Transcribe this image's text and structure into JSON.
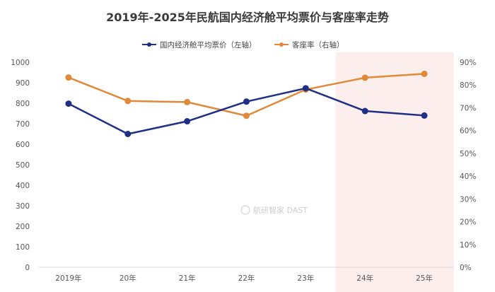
{
  "chart_data": {
    "type": "line",
    "title": "2019年-2025年民航国内经济舱平均票价与客座率走势",
    "categories": [
      "2019年",
      "20年",
      "21年",
      "22年",
      "23年",
      "24年",
      "25年"
    ],
    "series": [
      {
        "name": "国内经济舱平均票价（左轴）",
        "axis": "left",
        "color": "#1f2f86",
        "values": [
          798,
          650,
          712,
          808,
          873,
          762,
          740
        ]
      },
      {
        "name": "客座率（右轴）",
        "axis": "right",
        "color": "#e0893a",
        "values": [
          0.833,
          0.73,
          0.725,
          0.665,
          0.78,
          0.832,
          0.849
        ]
      }
    ],
    "y_left": {
      "range": [
        0,
        1000
      ],
      "ticks": [
        "0",
        "100",
        "200",
        "300",
        "400",
        "500",
        "600",
        "700",
        "800",
        "900",
        "1000"
      ]
    },
    "y_right": {
      "range": [
        0,
        0.9
      ],
      "ticks": [
        "0%",
        "10%",
        "20%",
        "30%",
        "40%",
        "50%",
        "60%",
        "70%",
        "80%",
        "90%"
      ]
    },
    "highlight": {
      "from_category": "24年",
      "to_category": "25年",
      "color": "#fdeeee"
    },
    "grid": false,
    "legend_position": "top-center"
  },
  "watermark": "航研智家 DAST"
}
